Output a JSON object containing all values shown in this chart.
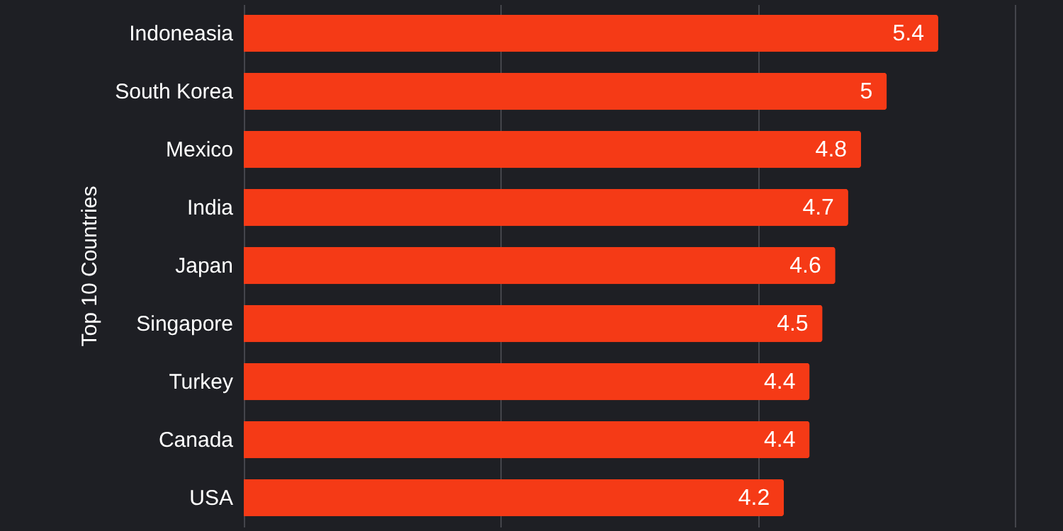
{
  "chart_data": {
    "type": "bar",
    "orientation": "horizontal",
    "ylabel": "Top 10 Countries",
    "categories": [
      "Indoneasia",
      "South Korea",
      "Mexico",
      "India",
      "Japan",
      "Singapore",
      "Turkey",
      "Canada",
      "USA"
    ],
    "values": [
      5.4,
      5,
      4.8,
      4.7,
      4.6,
      4.5,
      4.4,
      4.4,
      4.2
    ],
    "color": "#f53a16",
    "data_labels": true,
    "grid": "x",
    "tick_labels": "y",
    "xlim": [
      0,
      6.37
    ],
    "xticks": [
      {
        "value": 0,
        "label": null
      },
      {
        "value": 2,
        "label": null
      },
      {
        "value": 4,
        "label": null
      },
      {
        "value": 6,
        "label": null
      }
    ]
  }
}
